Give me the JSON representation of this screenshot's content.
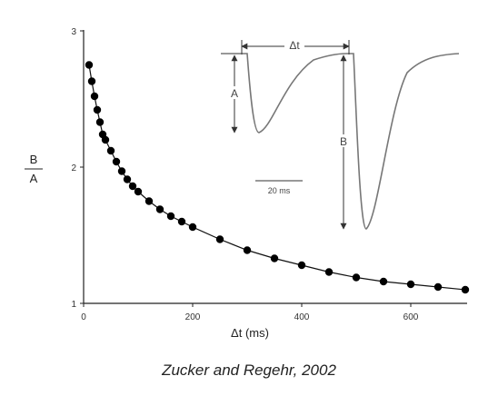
{
  "chart_data": {
    "type": "scatter",
    "title": "",
    "xlabel": "Δt (ms)",
    "ylabel_top": "B",
    "ylabel_bottom": "A",
    "xlim": [
      0,
      700
    ],
    "ylim": [
      1,
      3
    ],
    "xticks": [
      0,
      200,
      400,
      600
    ],
    "yticks": [
      1,
      2,
      3
    ],
    "grid": false,
    "series": [
      {
        "fit_curve": true,
        "x": [
          10,
          15,
          20,
          25,
          30,
          35,
          40,
          50,
          60,
          70,
          80,
          90,
          100,
          120,
          140,
          160,
          180,
          200,
          250,
          300,
          350,
          400,
          450,
          500,
          550,
          600,
          650,
          700
        ],
        "y": [
          2.75,
          2.63,
          2.52,
          2.42,
          2.33,
          2.24,
          2.2,
          2.12,
          2.04,
          1.97,
          1.91,
          1.86,
          1.82,
          1.75,
          1.69,
          1.64,
          1.6,
          1.56,
          1.47,
          1.39,
          1.33,
          1.28,
          1.23,
          1.19,
          1.16,
          1.14,
          1.12,
          1.1
        ]
      }
    ],
    "inset": {
      "interval_label": "Δt",
      "peak_a_label": "A",
      "peak_b_label": "B",
      "scale_bar_label": "20 ms"
    }
  },
  "caption": "Zucker and Regehr, 2002"
}
